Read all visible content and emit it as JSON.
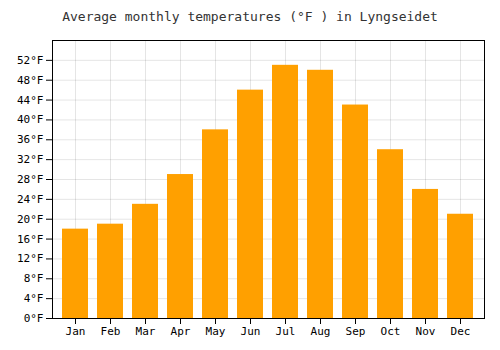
{
  "chart_data": {
    "type": "bar",
    "title": "Average monthly temperatures (°F ) in Lyngseidet",
    "categories": [
      "Jan",
      "Feb",
      "Mar",
      "Apr",
      "May",
      "Jun",
      "Jul",
      "Aug",
      "Sep",
      "Oct",
      "Nov",
      "Dec"
    ],
    "values": [
      18,
      19,
      23,
      29,
      38,
      46,
      51,
      50,
      43,
      34,
      26,
      21
    ],
    "color": "#FFA000",
    "ylim": [
      0,
      56
    ],
    "yticks": [
      {
        "value": 0,
        "label": "0°F"
      },
      {
        "value": 4,
        "label": "4°F"
      },
      {
        "value": 8,
        "label": "8°F"
      },
      {
        "value": 12,
        "label": "12°F"
      },
      {
        "value": 16,
        "label": "16°F"
      },
      {
        "value": 20,
        "label": "20°F"
      },
      {
        "value": 24,
        "label": "24°F"
      },
      {
        "value": 28,
        "label": "28°F"
      },
      {
        "value": 32,
        "label": "32°F"
      },
      {
        "value": 36,
        "label": "36°F"
      },
      {
        "value": 40,
        "label": "40°F"
      },
      {
        "value": 44,
        "label": "44°F"
      },
      {
        "value": 48,
        "label": "48°F"
      },
      {
        "value": 52,
        "label": "52°F"
      }
    ],
    "grid": true
  }
}
